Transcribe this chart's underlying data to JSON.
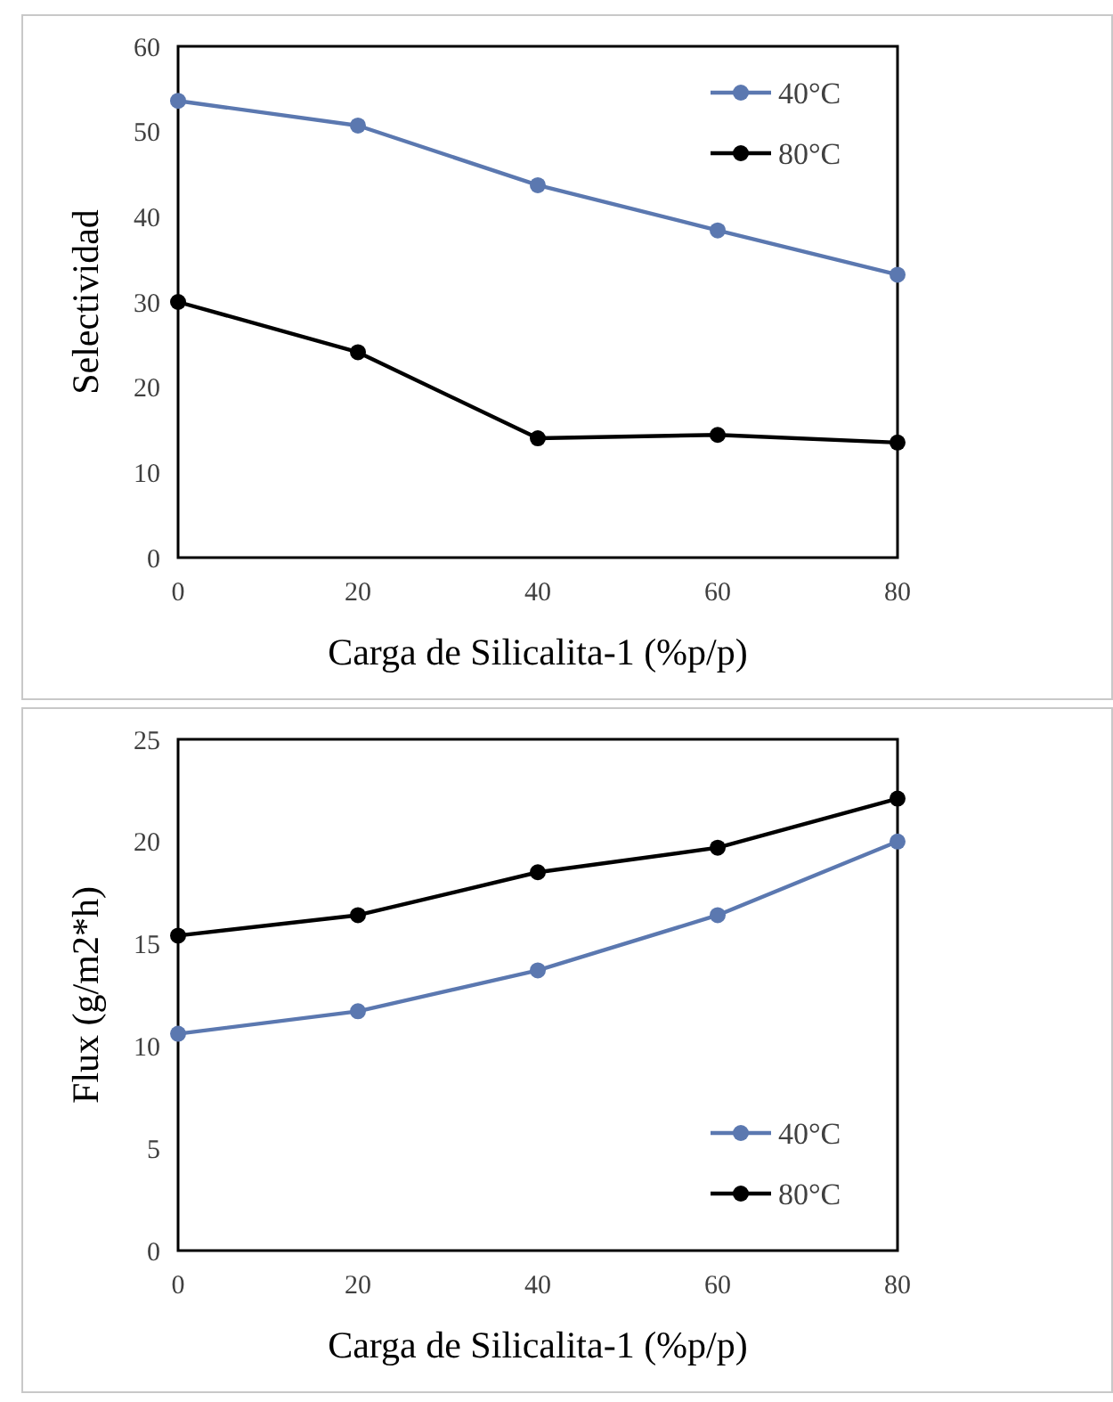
{
  "chart_data": [
    {
      "type": "line",
      "xlabel": "Carga de Silicalita-1 (%p/p)",
      "ylabel": "Selectividad",
      "x": [
        0,
        20,
        40,
        60,
        80
      ],
      "xlim": [
        0,
        80
      ],
      "xticks": [
        0,
        20,
        40,
        60,
        80
      ],
      "ylim": [
        0,
        60
      ],
      "yticks": [
        0,
        10,
        20,
        30,
        40,
        50,
        60
      ],
      "marker": "circle",
      "legend": "top right",
      "grid": false,
      "series": [
        {
          "name": "40°C",
          "color": "#5b78b0",
          "values": [
            53.6,
            50.7,
            43.7,
            38.4,
            33.2
          ]
        },
        {
          "name": "80°C",
          "color": "#000000",
          "values": [
            30.0,
            24.1,
            14.0,
            14.4,
            13.5
          ]
        }
      ]
    },
    {
      "type": "line",
      "xlabel": "Carga de Silicalita-1 (%p/p)",
      "ylabel": "Flux (g/m2*h)",
      "x": [
        0,
        20,
        40,
        60,
        80
      ],
      "xlim": [
        0,
        80
      ],
      "xticks": [
        0,
        20,
        40,
        60,
        80
      ],
      "ylim": [
        0,
        25
      ],
      "yticks": [
        0,
        5,
        10,
        15,
        20,
        25
      ],
      "marker": "circle",
      "legend": "bottom right",
      "grid": false,
      "series": [
        {
          "name": "40°C",
          "color": "#5b78b0",
          "values": [
            10.6,
            11.7,
            13.7,
            16.4,
            20.0
          ]
        },
        {
          "name": "80°C",
          "color": "#000000",
          "values": [
            15.4,
            16.4,
            18.5,
            19.7,
            22.1
          ]
        }
      ]
    }
  ]
}
